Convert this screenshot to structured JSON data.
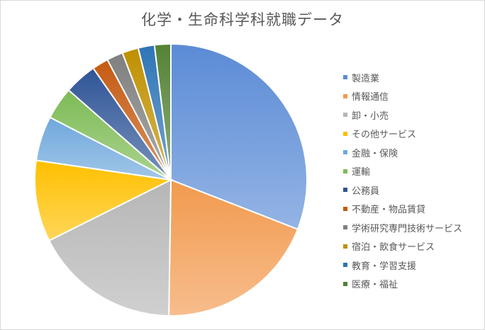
{
  "chart_data": {
    "type": "pie",
    "title": "化学・生命科学科就職データ",
    "categories": [
      "製造業",
      "情報通信",
      "卸・小売",
      "その他サービス",
      "金融・保険",
      "運輸",
      "公務員",
      "不動産・物品賃貸",
      "学術研究専門技術サービス",
      "宿泊・飲食サービス",
      "教育・学習支援",
      "医療・福祉"
    ],
    "values": [
      32,
      20,
      18,
      10,
      5.5,
      4,
      4,
      2,
      2,
      2,
      2,
      2
    ],
    "colors": [
      "#5b8bd6",
      "#f29a4e",
      "#b6b6b6",
      "#ffc000",
      "#6fa8dc",
      "#7dbb55",
      "#2f5597",
      "#c55a11",
      "#7f7f7f",
      "#bf9000",
      "#2e75b6",
      "#548235"
    ],
    "legend_position": "right"
  }
}
